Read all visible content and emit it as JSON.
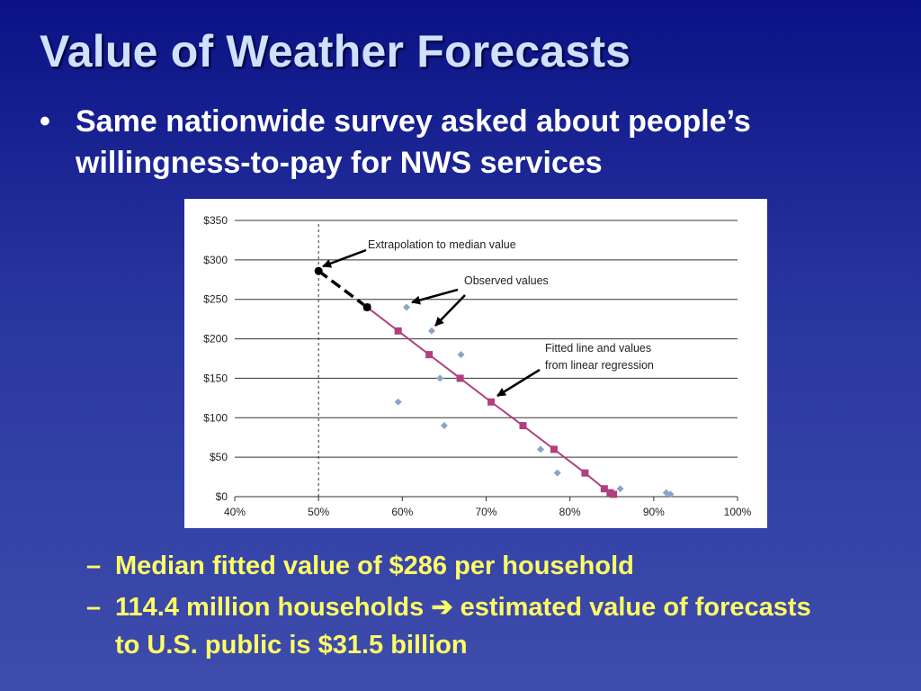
{
  "slide": {
    "title": "Value of Weather Forecasts",
    "bullet_marker": "•",
    "bullet": "Same nationwide survey asked about people’s willingness-to-pay for NWS services",
    "sub_marker": "–",
    "sub_bullets": [
      "Median fitted value of $286 per household",
      "114.4 million households ➔ estimated value of forecasts to U.S. public is $31.5 billion"
    ]
  },
  "colors": {
    "fitted": "#b0407e",
    "observed": "#8aa4c8",
    "extrapolation": "#000000",
    "grid": "#333333"
  },
  "chart_data": {
    "type": "scatter",
    "title": "",
    "xlabel": "",
    "ylabel": "",
    "xlim": [
      40,
      100
    ],
    "ylim": [
      0,
      350
    ],
    "x_ticks": [
      "40%",
      "50%",
      "60%",
      "70%",
      "80%",
      "90%",
      "100%"
    ],
    "y_ticks": [
      "$0",
      "$50",
      "$100",
      "$150",
      "$200",
      "$250",
      "$300",
      "$350"
    ],
    "grid": "horizontal",
    "reference_line_x": 50,
    "series": [
      {
        "points": [
          {
            "x": 60.5,
            "y": 240
          },
          {
            "x": 63.5,
            "y": 210
          },
          {
            "x": 67,
            "y": 180
          },
          {
            "x": 64.5,
            "y": 150
          },
          {
            "x": 59.5,
            "y": 120
          },
          {
            "x": 65,
            "y": 90
          },
          {
            "x": 76.5,
            "y": 60
          },
          {
            "x": 78.5,
            "y": 30
          },
          {
            "x": 86,
            "y": 10
          },
          {
            "x": 91.5,
            "y": 5
          },
          {
            "x": 92,
            "y": 3
          }
        ]
      },
      {
        "points": [
          {
            "x": 55.8,
            "y": 240
          },
          {
            "x": 59.5,
            "y": 210
          },
          {
            "x": 63.2,
            "y": 180
          },
          {
            "x": 66.9,
            "y": 150
          },
          {
            "x": 70.6,
            "y": 120
          },
          {
            "x": 74.4,
            "y": 90
          },
          {
            "x": 78.1,
            "y": 60
          },
          {
            "x": 81.8,
            "y": 30
          },
          {
            "x": 84.1,
            "y": 10
          },
          {
            "x": 84.8,
            "y": 5
          },
          {
            "x": 85.2,
            "y": 3
          }
        ]
      },
      {
        "points": [
          {
            "x": 50,
            "y": 286
          },
          {
            "x": 55.8,
            "y": 240
          }
        ]
      }
    ],
    "annotations": [
      {
        "text": "Extrapolation to median value"
      },
      {
        "text": "Observed values"
      },
      {
        "text": "Fitted line and values"
      },
      {
        "text": "from linear regression"
      }
    ]
  }
}
